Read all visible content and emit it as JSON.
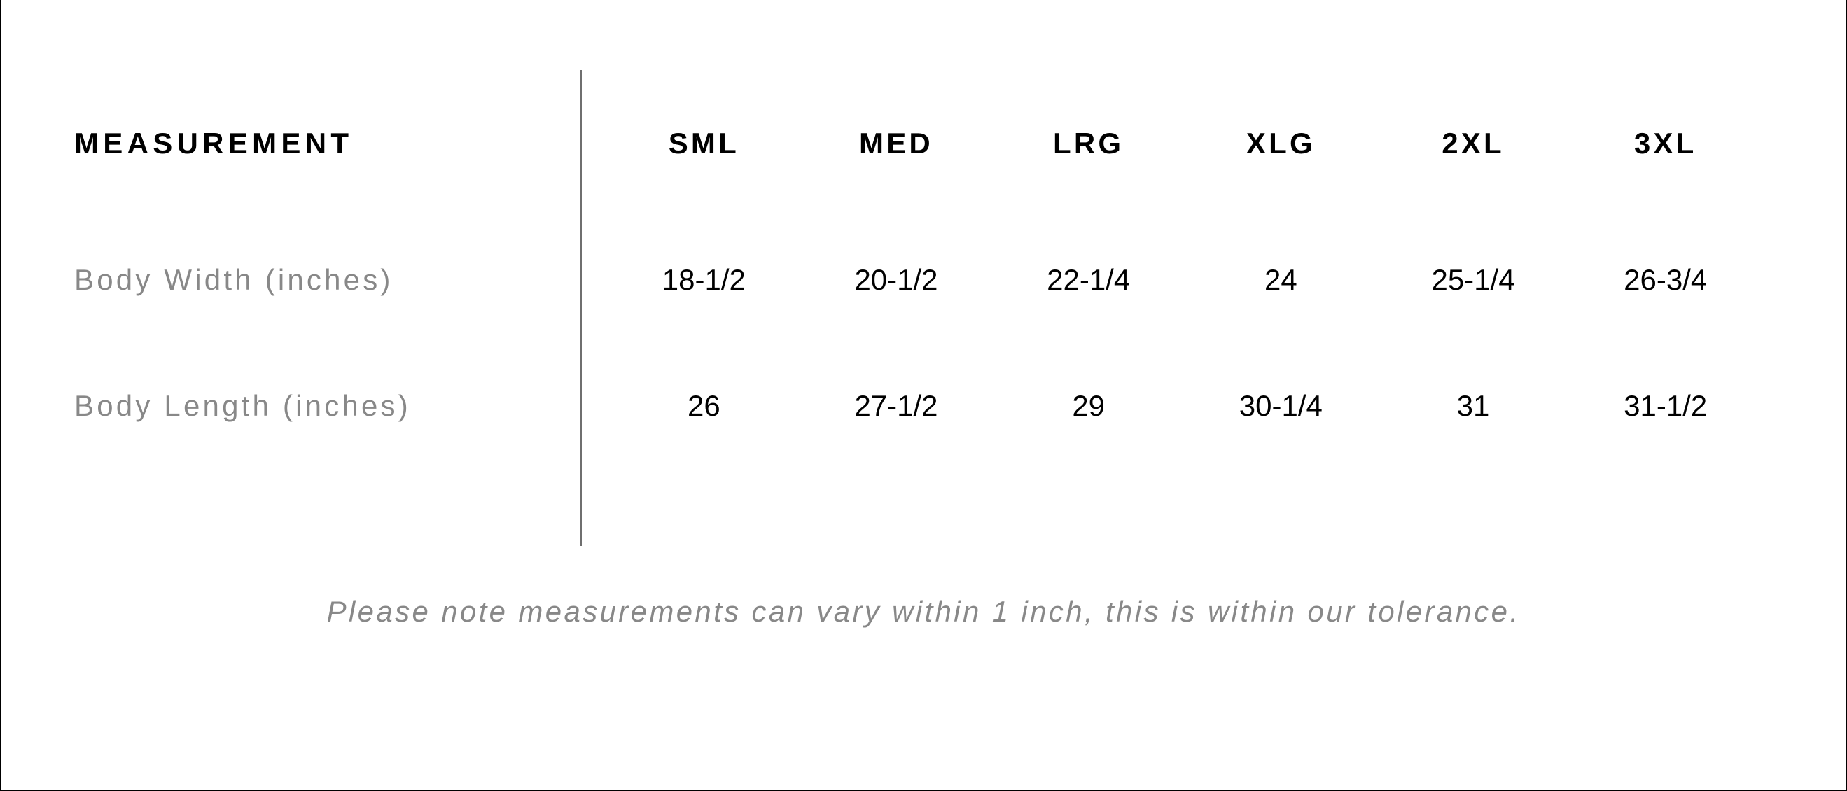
{
  "table": {
    "type": "table",
    "header_label": "MEASUREMENT",
    "columns": [
      "SML",
      "MED",
      "LRG",
      "XLG",
      "2XL",
      "3XL"
    ],
    "rows": [
      {
        "label": "Body Width (inches)",
        "values": [
          "18-1/2",
          "20-1/2",
          "22-1/4",
          "24",
          "25-1/4",
          "26-3/4"
        ]
      },
      {
        "label": "Body Length (inches)",
        "values": [
          "26",
          "27-1/2",
          "29",
          "30-1/4",
          "31",
          "31-1/2"
        ]
      }
    ],
    "style": {
      "background_color": "#ffffff",
      "header_text_color": "#000000",
      "row_label_color": "#888888",
      "data_text_color": "#000000",
      "divider_color": "#6f6f6f",
      "border_color": "#000000",
      "header_fontsize": 42,
      "header_fontweight": 700,
      "header_letter_spacing": "0.15em",
      "data_fontsize": 42,
      "data_fontweight": 400,
      "label_fontsize": 42,
      "label_letter_spacing": "0.1em"
    }
  },
  "footnote": {
    "text": "Please note measurements can vary within 1 inch, this is within our tolerance.",
    "style": {
      "color": "#888888",
      "fontsize": 42,
      "font_style": "italic",
      "letter_spacing": "0.08em"
    }
  }
}
